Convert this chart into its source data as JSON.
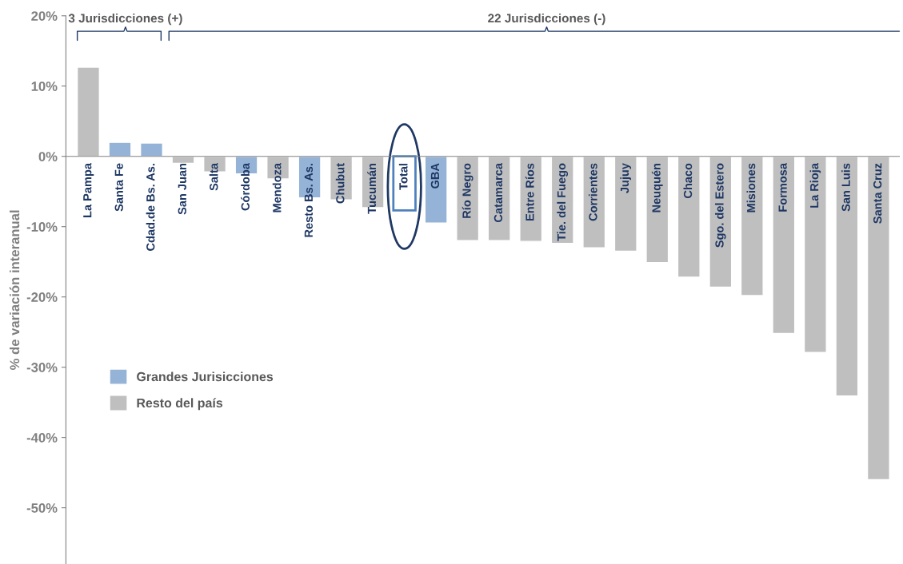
{
  "chart_data": {
    "type": "bar",
    "ylabel": "% de variación interanual",
    "categories": [
      "La Pampa",
      "Santa Fe",
      "Cdad.de Bs. As.",
      "San Juan",
      "Salta",
      "Córdoba",
      "Mendoza",
      "Resto Bs. As.",
      "Chubut",
      "Tucumán",
      "Total",
      "GBA",
      "Río Negro",
      "Catamarca",
      "Entre Ríos",
      "Tie. del Fuego",
      "Corrientes",
      "Jujuy",
      "Neuquén",
      "Chaco",
      "Sgo. del Estero",
      "Misiones",
      "Formosa",
      "La Rioja",
      "San Luis",
      "Santa Cruz"
    ],
    "series": [
      {
        "name": "Grandes Jurisicciones",
        "color": "#95b3d7",
        "values": [
          null,
          2.0,
          1.9,
          null,
          null,
          -2.5,
          null,
          -5.9,
          null,
          null,
          null,
          -9.5,
          null,
          null,
          null,
          null,
          null,
          null,
          null,
          null,
          null,
          null,
          null,
          null,
          null,
          null
        ]
      },
      {
        "name": "Resto del país",
        "color": "#bfbfbf",
        "values": [
          12.7,
          null,
          null,
          -1.0,
          -2.2,
          null,
          -3.2,
          null,
          -6.2,
          -7.3,
          null,
          null,
          -12.0,
          -12.0,
          -12.1,
          -12.4,
          -13.0,
          -13.5,
          -15.1,
          -17.2,
          -18.6,
          -19.8,
          -25.2,
          -27.9,
          -34.1,
          -46.0
        ]
      },
      {
        "color": "#4f81bd",
        "values": [
          null,
          null,
          null,
          null,
          null,
          null,
          null,
          null,
          null,
          null,
          -7.7,
          null,
          null,
          null,
          null,
          null,
          null,
          null,
          null,
          null,
          null,
          null,
          null,
          null,
          null,
          null
        ]
      }
    ],
    "annotations": [
      "3 Jurisdicciones (+)",
      "22 Jurisdicciones (-)"
    ],
    "ylim": [
      -58,
      20
    ],
    "yticks": [
      {
        "value": -50,
        "label": "-50%"
      },
      {
        "value": -40,
        "label": "-40%"
      },
      {
        "value": -30,
        "label": "-30%"
      },
      {
        "value": -20,
        "label": "-20%"
      },
      {
        "value": -10,
        "label": "-10%"
      },
      {
        "value": 0,
        "label": "0%"
      },
      {
        "value": 10,
        "label": "10%"
      },
      {
        "value": 20,
        "label": "20%"
      }
    ],
    "tick_labels": "y",
    "legend": "bottom left",
    "grid": false
  }
}
